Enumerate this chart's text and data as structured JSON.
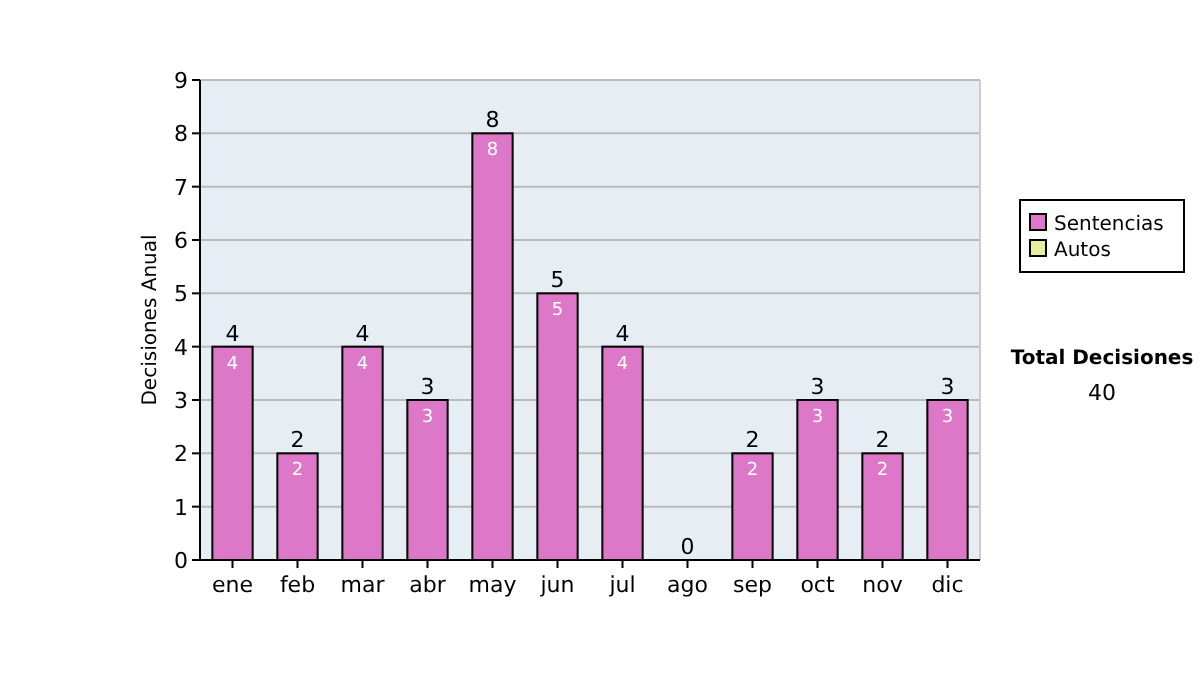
{
  "chart_data": {
    "type": "bar",
    "ylabel": "Decisiones Anual",
    "categories": [
      "ene",
      "feb",
      "mar",
      "abr",
      "may",
      "jun",
      "jul",
      "ago",
      "sep",
      "oct",
      "nov",
      "dic"
    ],
    "series": [
      {
        "name": "Sentencias",
        "color": "#dd77c8",
        "values": [
          4,
          2,
          4,
          3,
          8,
          5,
          4,
          0,
          2,
          3,
          2,
          3
        ],
        "value_labels": [
          "4",
          "2",
          "4",
          "3",
          "8",
          "5",
          "4",
          null,
          "2",
          "3",
          "2",
          "3"
        ]
      },
      {
        "name": "Autos",
        "color": "#e8f0a0",
        "values": [
          0,
          0,
          0,
          0,
          0,
          0,
          0,
          0,
          0,
          0,
          0,
          0
        ]
      }
    ],
    "stacked": true,
    "totals": [
      "4",
      "2",
      "4",
      "3",
      "8",
      "5",
      "4",
      "0",
      "2",
      "3",
      "2",
      "3"
    ],
    "ylim": [
      0,
      9
    ],
    "yticks": [
      0,
      1,
      2,
      3,
      4,
      5,
      6,
      7,
      8,
      9
    ],
    "grid": "y",
    "legend": "right",
    "annotations": [
      "Total Decisiones",
      "40"
    ]
  }
}
